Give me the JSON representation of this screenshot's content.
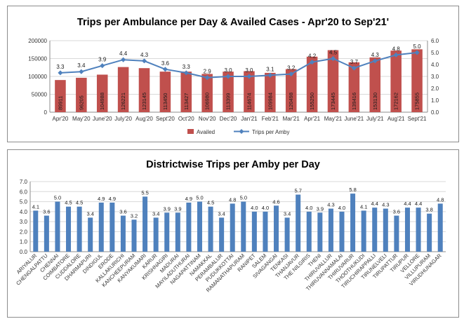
{
  "chart_data": [
    {
      "type": "bar+line",
      "title": "Trips per Ambulance per Day & Availed Cases - Apr'20 to Sep'21'",
      "categories": [
        "Apr'20",
        "May'20",
        "June'20",
        "July'20",
        "Aug'20",
        "Sept'20",
        "Oct'20",
        "Nov'20",
        "Dec'20",
        "Jan'21",
        "Feb'21",
        "Mar'21",
        "Apr'21",
        "May'21",
        "June'21",
        "July'21",
        "Aug'21",
        "Sept'21"
      ],
      "series": [
        {
          "name": "Availed",
          "axis": "left",
          "kind": "bar",
          "color": "#c0504d",
          "values": [
            89911,
            96205,
            104988,
            126221,
            123145,
            113450,
            113427,
            106980,
            113399,
            114674,
            109984,
            120498,
            155250,
            173445,
            139416,
            153130,
            172162,
            175855
          ]
        },
        {
          "name": "Trips per Amby",
          "axis": "right",
          "kind": "line",
          "color": "#4f81bd",
          "values": [
            3.3,
            3.4,
            3.9,
            4.4,
            4.3,
            3.6,
            3.3,
            2.9,
            3.0,
            3.0,
            3.1,
            3.2,
            4.2,
            4.5,
            3.7,
            4.3,
            4.8,
            5.0
          ]
        }
      ],
      "left_ylim": [
        0,
        200000
      ],
      "left_ticks": [
        "0",
        "50000",
        "100000",
        "150000",
        "200000"
      ],
      "right_ylim": [
        0,
        6
      ],
      "right_ticks": [
        "0.0",
        "1.0",
        "2.0",
        "3.0",
        "4.0",
        "5.0",
        "6.0"
      ],
      "legend": [
        "Availed",
        "Trips per Amby"
      ],
      "legend_position": "bottom"
    },
    {
      "type": "bar",
      "title": "Districtwise Trips per Amby per Day",
      "categories": [
        "ARIYALUR",
        "CHENGALPATTU",
        "CHENNAI",
        "COIMBATORE",
        "CUDDALORE",
        "DHARMAPURI",
        "DINDIGUL",
        "ERODE",
        "KALLAKURICHI",
        "KANCHEEPURAM",
        "KANYAKUMARI",
        "KARUR",
        "KRISHNAGIRI",
        "MADURAI",
        "MAYILADUTHURAI",
        "NAGAPATTINAM",
        "NAMAKKAL",
        "PERAMBALUR",
        "PUDUKKOTTAI",
        "RAMANATHAPURAM",
        "RANIPET",
        "SALEM",
        "SIVAGANGAI",
        "TENKASI",
        "THANJAVUR",
        "THE NILGIRIS",
        "THENI",
        "THIRUVALLUR",
        "THIRUVANNAMALAI",
        "THIRUVARUR",
        "THOOTHUKUDI",
        "TIRUCHIRAPPALLI",
        "TIRUNELVELI",
        "TIRUPATTUR",
        "TIRUPUR",
        "VELLORE",
        "VILLUPURAM",
        "VIRUDHUNAGAR"
      ],
      "values": [
        4.1,
        3.6,
        5.0,
        4.5,
        4.5,
        3.4,
        4.9,
        4.9,
        3.6,
        3.2,
        5.5,
        3.4,
        3.9,
        3.9,
        4.9,
        5.0,
        4.5,
        3.4,
        4.8,
        5.0,
        4.0,
        4.0,
        4.6,
        3.4,
        5.7,
        4.0,
        3.9,
        4.3,
        4.0,
        5.8,
        4.1,
        4.4,
        4.3,
        3.6,
        4.4,
        4.4,
        3.8,
        4.8
      ],
      "color": "#4f81bd",
      "ylim": [
        0,
        7
      ],
      "ticks": [
        "0.0",
        "1.0",
        "2.0",
        "3.0",
        "4.0",
        "5.0",
        "6.0",
        "7.0"
      ]
    }
  ]
}
